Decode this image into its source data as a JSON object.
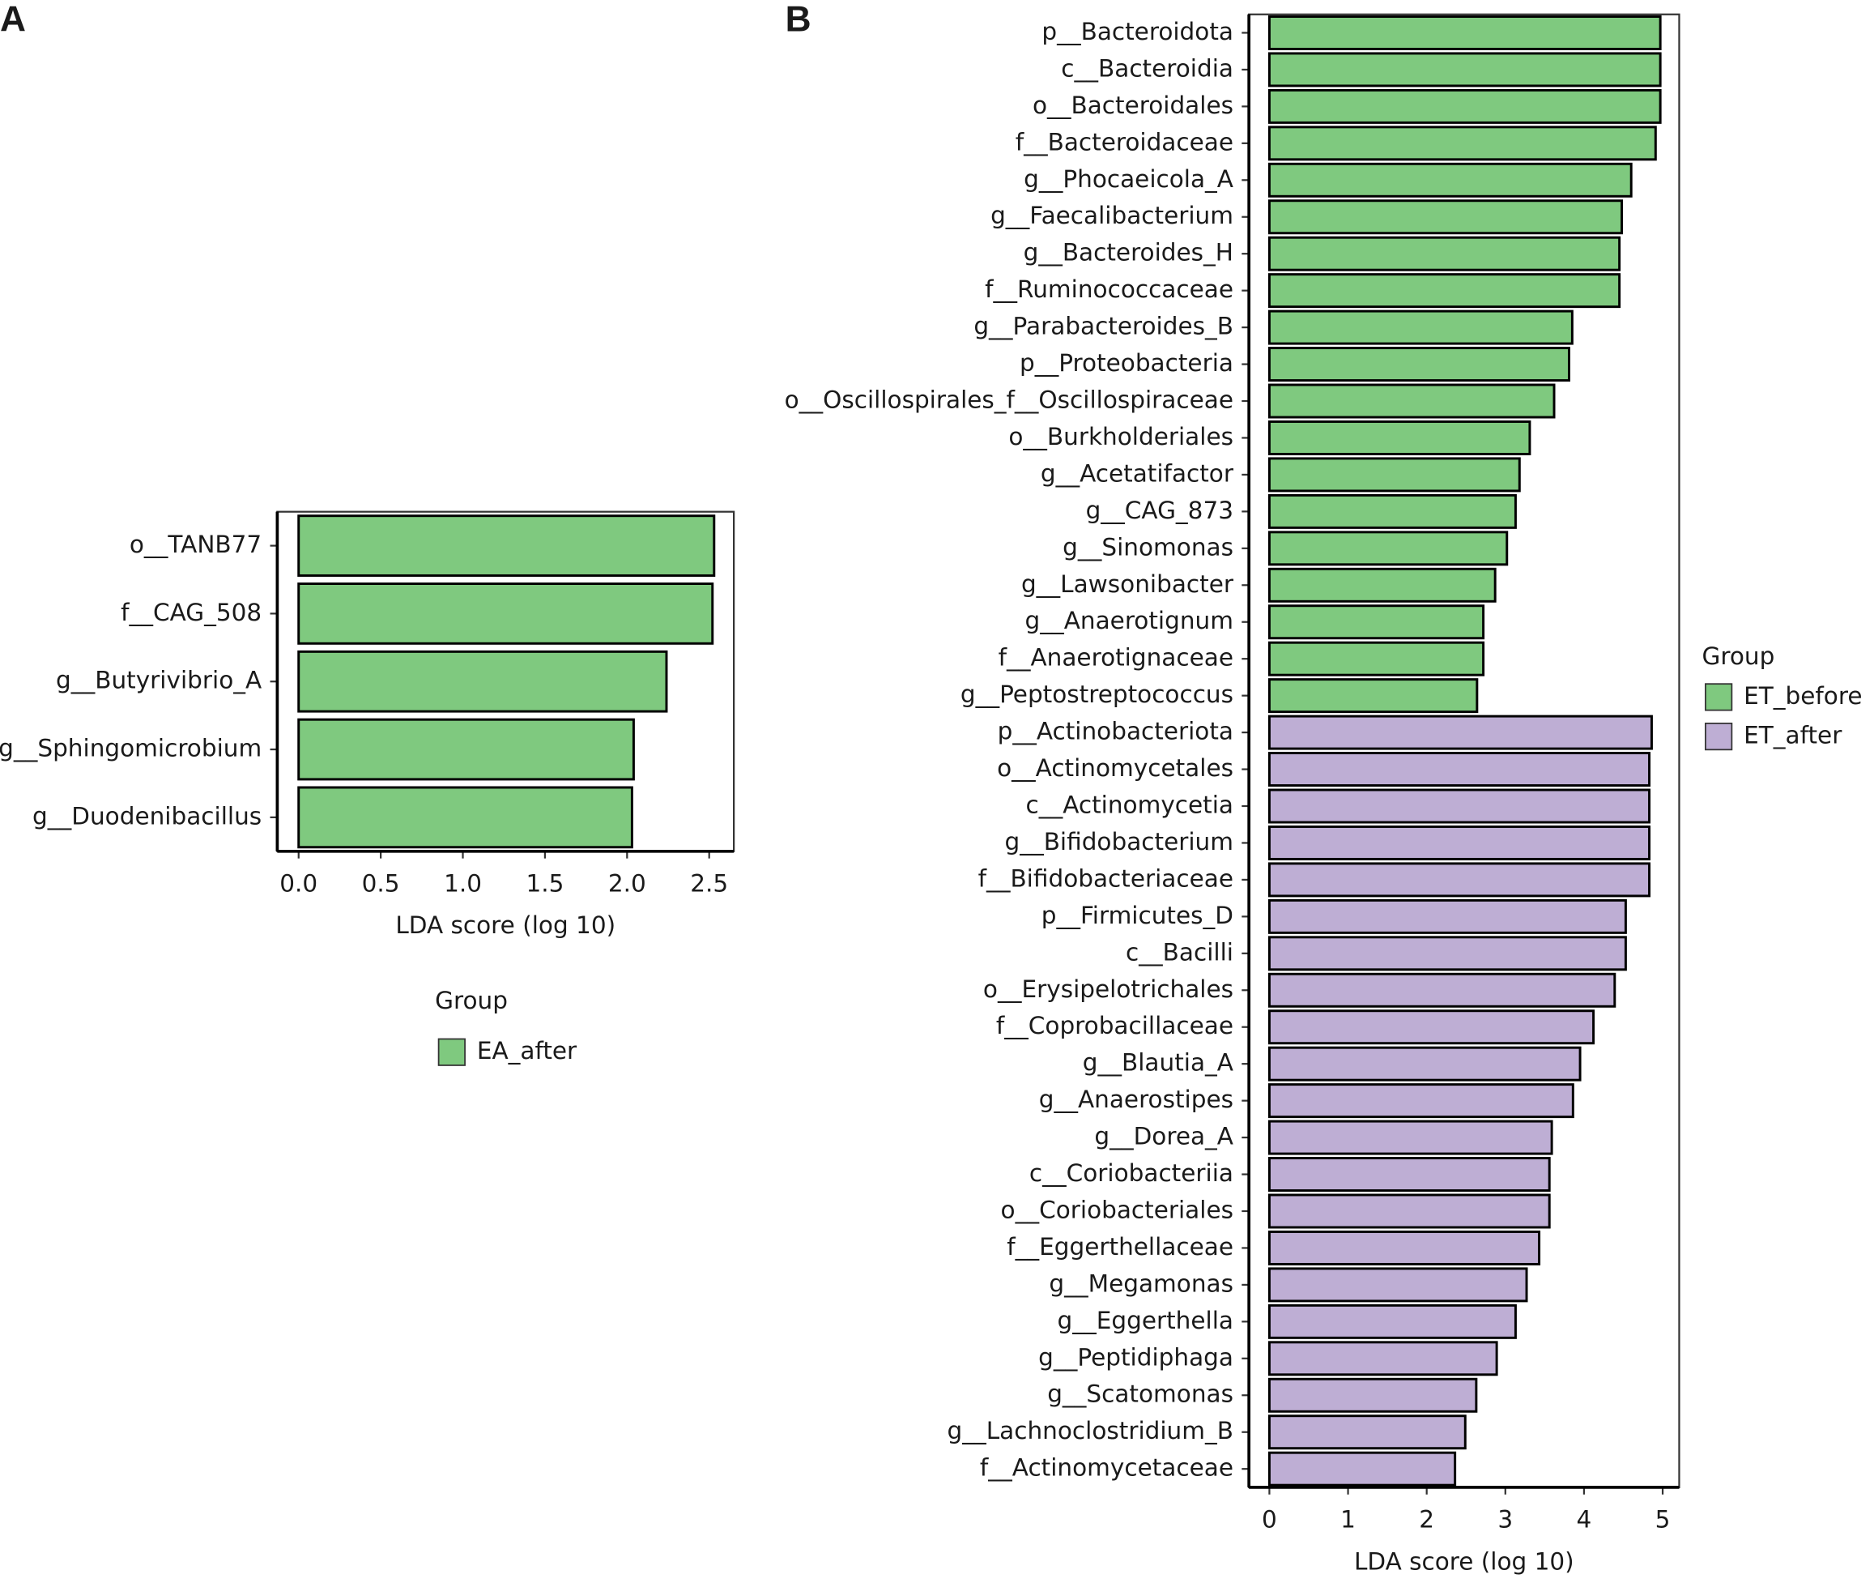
{
  "chart_data": [
    {
      "type": "barh",
      "panel": "A",
      "xlabel": "LDA score (log 10)",
      "legend_title": "Group",
      "categories": [
        "o__TANB77",
        "f__CAG_508",
        "g__Butyrivibrio_A",
        "g__Sphingomicrobium",
        "g__Duodenibacillus"
      ],
      "series": [
        {
          "name": "EA_after",
          "color": "#7fc97f",
          "values": [
            2.53,
            2.52,
            2.24,
            2.04,
            2.03
          ]
        }
      ],
      "xlim": [
        -0.13,
        2.65
      ],
      "xticks": [
        {
          "value": 0,
          "label": "0.0"
        },
        0.5,
        {
          "value": 1,
          "label": "1.0"
        },
        1.5,
        {
          "value": 2,
          "label": "2.0"
        },
        2.5
      ]
    },
    {
      "type": "barh",
      "panel": "B",
      "xlabel": "LDA score (log 10)",
      "legend_title": "Group",
      "categories": [
        "p__Bacteroidota",
        "c__Bacteroidia",
        "o__Bacteroidales",
        "f__Bacteroidaceae",
        "g__Phocaeicola_A",
        "g__Faecalibacterium",
        "g__Bacteroides_H",
        "f__Ruminococcaceae",
        "g__Parabacteroides_B",
        "p__Proteobacteria",
        "o__Oscillospirales_f__Oscillospiraceae",
        "o__Burkholderiales",
        "g__Acetatifactor",
        "g__CAG_873",
        "g__Sinomonas",
        "g__Lawsonibacter",
        "g__Anaerotignum",
        "f__Anaerotignaceae",
        "g__Peptostreptococcus",
        "p__Actinobacteriota",
        "o__Actinomycetales",
        "c__Actinomycetia",
        "g__Bifidobacterium",
        "f__Bifidobacteriaceae",
        "p__Firmicutes_D",
        "c__Bacilli",
        "o__Erysipelotrichales",
        "f__Coprobacillaceae",
        "g__Blautia_A",
        "g__Anaerostipes",
        "g__Dorea_A",
        "c__Coriobacteriia",
        "o__Coriobacteriales",
        "f__Eggerthellaceae",
        "g__Megamonas",
        "g__Eggerthella",
        "g__Peptidiphaga",
        "g__Scatomonas",
        "g__Lachnoclostridium_B",
        "f__Actinomycetaceae"
      ],
      "series": [
        {
          "name": "ET_before",
          "color": "#7fc97f",
          "values": [
            4.97,
            4.97,
            4.97,
            4.91,
            4.6,
            4.48,
            4.45,
            4.45,
            3.85,
            3.81,
            3.62,
            3.31,
            3.18,
            3.13,
            3.02,
            2.87,
            2.72,
            2.72,
            2.64,
            null,
            null,
            null,
            null,
            null,
            null,
            null,
            null,
            null,
            null,
            null,
            null,
            null,
            null,
            null,
            null,
            null,
            null,
            null,
            null,
            null
          ]
        },
        {
          "name": "ET_after",
          "color": "#beaed4",
          "values": [
            null,
            null,
            null,
            null,
            null,
            null,
            null,
            null,
            null,
            null,
            null,
            null,
            null,
            null,
            null,
            null,
            null,
            null,
            null,
            4.86,
            4.83,
            4.83,
            4.83,
            4.83,
            4.53,
            4.53,
            4.39,
            4.12,
            3.95,
            3.86,
            3.59,
            3.56,
            3.56,
            3.43,
            3.27,
            3.13,
            2.89,
            2.63,
            2.49,
            2.36
          ]
        }
      ],
      "xlim": [
        -0.26,
        5.21
      ],
      "xticks": [
        0,
        1,
        2,
        3,
        4,
        5
      ]
    }
  ]
}
